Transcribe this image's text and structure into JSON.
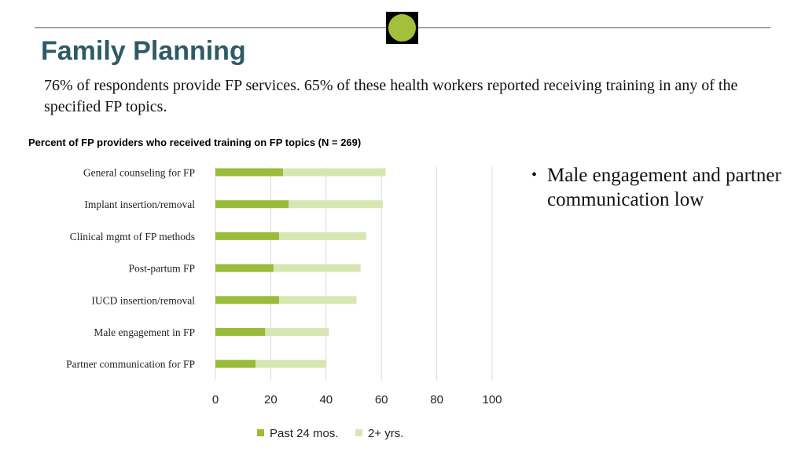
{
  "slide": {
    "title": "Family Planning",
    "subtitle": "76% of respondents provide FP services. 65% of these health workers reported receiving training in any of the specified FP topics.",
    "colors": {
      "title": "#2e5a66",
      "badge_circle": "#a4bf3a"
    }
  },
  "bullets": [
    {
      "text": "Male engagement and partner communication low"
    }
  ],
  "chart_data": {
    "type": "bar",
    "orientation": "horizontal",
    "stacked": true,
    "title": "Percent of FP providers who received training on FP topics (N = 269)",
    "categories": [
      "General counseling for FP",
      "Implant insertion/removal",
      "Clinical mgmt of FP methods",
      "Post-partum FP",
      "IUCD insertion/removal",
      "Male engagement in FP",
      "Partner communication for FP"
    ],
    "series": [
      {
        "name": "Past 24 mos.",
        "color": "#9bbb3b",
        "values": [
          24.5,
          26.5,
          23,
          21,
          23,
          18,
          14.5
        ]
      },
      {
        "name": "2+ yrs.",
        "color": "#d9e6b3",
        "values": [
          37,
          34,
          31.5,
          31.5,
          28,
          23,
          25.5
        ]
      }
    ],
    "xlim": [
      0,
      100
    ],
    "xticks": [
      0,
      20,
      40,
      60,
      80,
      100
    ],
    "grid": true,
    "legend": "bottom"
  }
}
